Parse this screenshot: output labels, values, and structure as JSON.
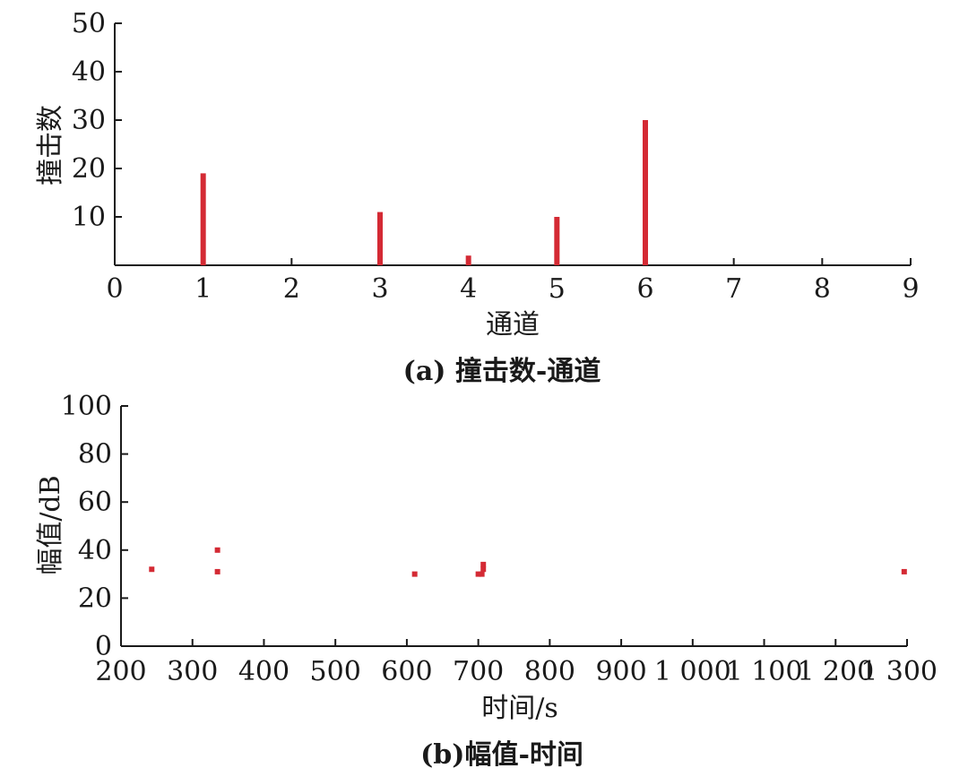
{
  "chart_data": [
    {
      "type": "bar",
      "caption": "(a) 撞击数-通道",
      "xlabel": "通道",
      "ylabel": "撞击数",
      "xlim": [
        0,
        9
      ],
      "ylim": [
        0,
        50
      ],
      "xticks": [
        "0",
        "1",
        "2",
        "3",
        "4",
        "5",
        "6",
        "7",
        "8",
        "9"
      ],
      "yticks": [
        "10",
        "20",
        "30",
        "40",
        "50"
      ],
      "categories": [
        1,
        3,
        4,
        5,
        6
      ],
      "values": [
        19,
        11,
        2,
        10,
        30
      ],
      "color": "#d42a34",
      "grid": false
    },
    {
      "type": "scatter",
      "caption": "(b)幅值-时间",
      "xlabel": "时间/s",
      "ylabel": "幅值/dB",
      "xlim": [
        200,
        1300
      ],
      "ylim": [
        0,
        100
      ],
      "xticks": [
        "200",
        "300",
        "400",
        "500",
        "600",
        "700",
        "800",
        "900",
        "1 000",
        "1 100",
        "1 200",
        "1 300"
      ],
      "yticks": [
        "0",
        "20",
        "40",
        "60",
        "80",
        "100"
      ],
      "points": [
        {
          "x": 243,
          "y": 32
        },
        {
          "x": 335,
          "y": 40
        },
        {
          "x": 335,
          "y": 31
        },
        {
          "x": 611,
          "y": 30
        },
        {
          "x": 700,
          "y": 30
        },
        {
          "x": 705,
          "y": 30
        },
        {
          "x": 707,
          "y": 34
        },
        {
          "x": 707,
          "y": 32
        },
        {
          "x": 1296,
          "y": 31
        }
      ],
      "color": "#d42a34",
      "grid": false
    }
  ]
}
